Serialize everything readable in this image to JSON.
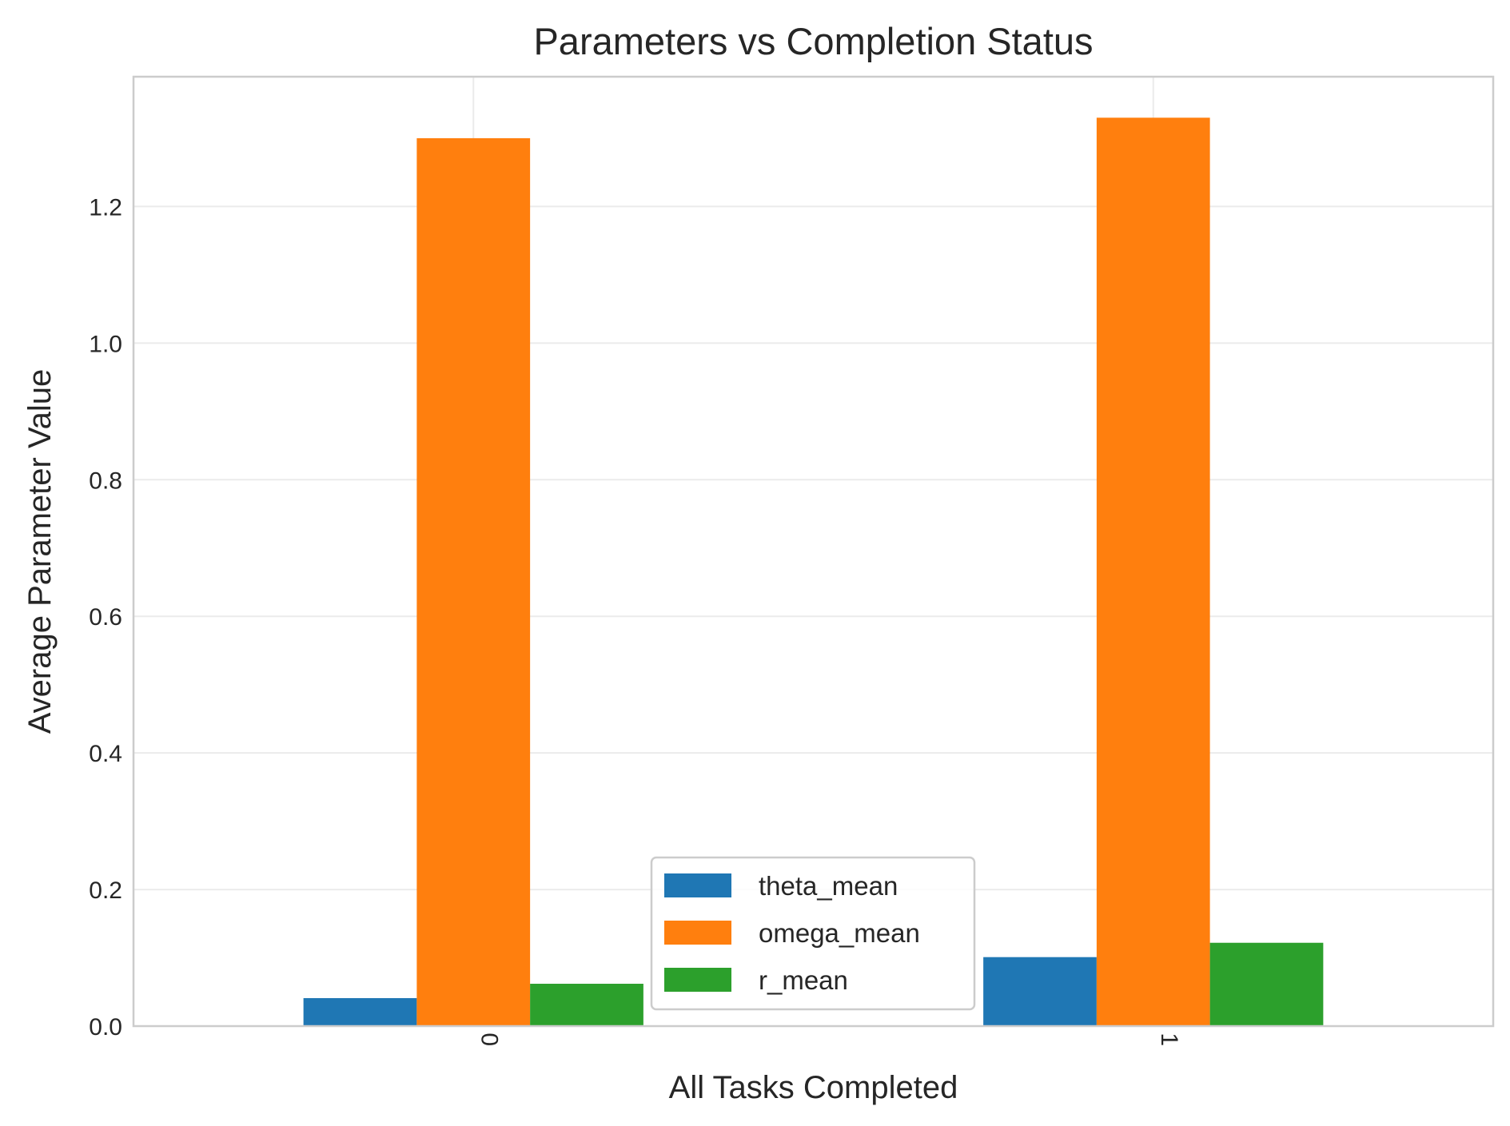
{
  "chart_data": {
    "type": "bar",
    "title": "Parameters vs Completion Status",
    "xlabel": "All Tasks Completed",
    "ylabel": "Average Parameter Value",
    "categories": [
      "0",
      "1"
    ],
    "series": [
      {
        "name": "theta_mean",
        "color": "#1f77b4",
        "values": [
          0.041,
          0.101
        ]
      },
      {
        "name": "omega_mean",
        "color": "#ff7f0e",
        "values": [
          1.3,
          1.33
        ]
      },
      {
        "name": "r_mean",
        "color": "#2ca02c",
        "values": [
          0.062,
          0.122
        ]
      }
    ],
    "ylim": [
      0,
      1.39
    ],
    "yticks": [
      0.0,
      0.2,
      0.4,
      0.6,
      0.8,
      1.0,
      1.2
    ],
    "ytick_labels": [
      "0.0",
      "0.2",
      "0.4",
      "0.6",
      "0.8",
      "1.0",
      "1.2"
    ],
    "grid": true,
    "legend_position": "bottom-center",
    "xtick_rotation": 90
  }
}
